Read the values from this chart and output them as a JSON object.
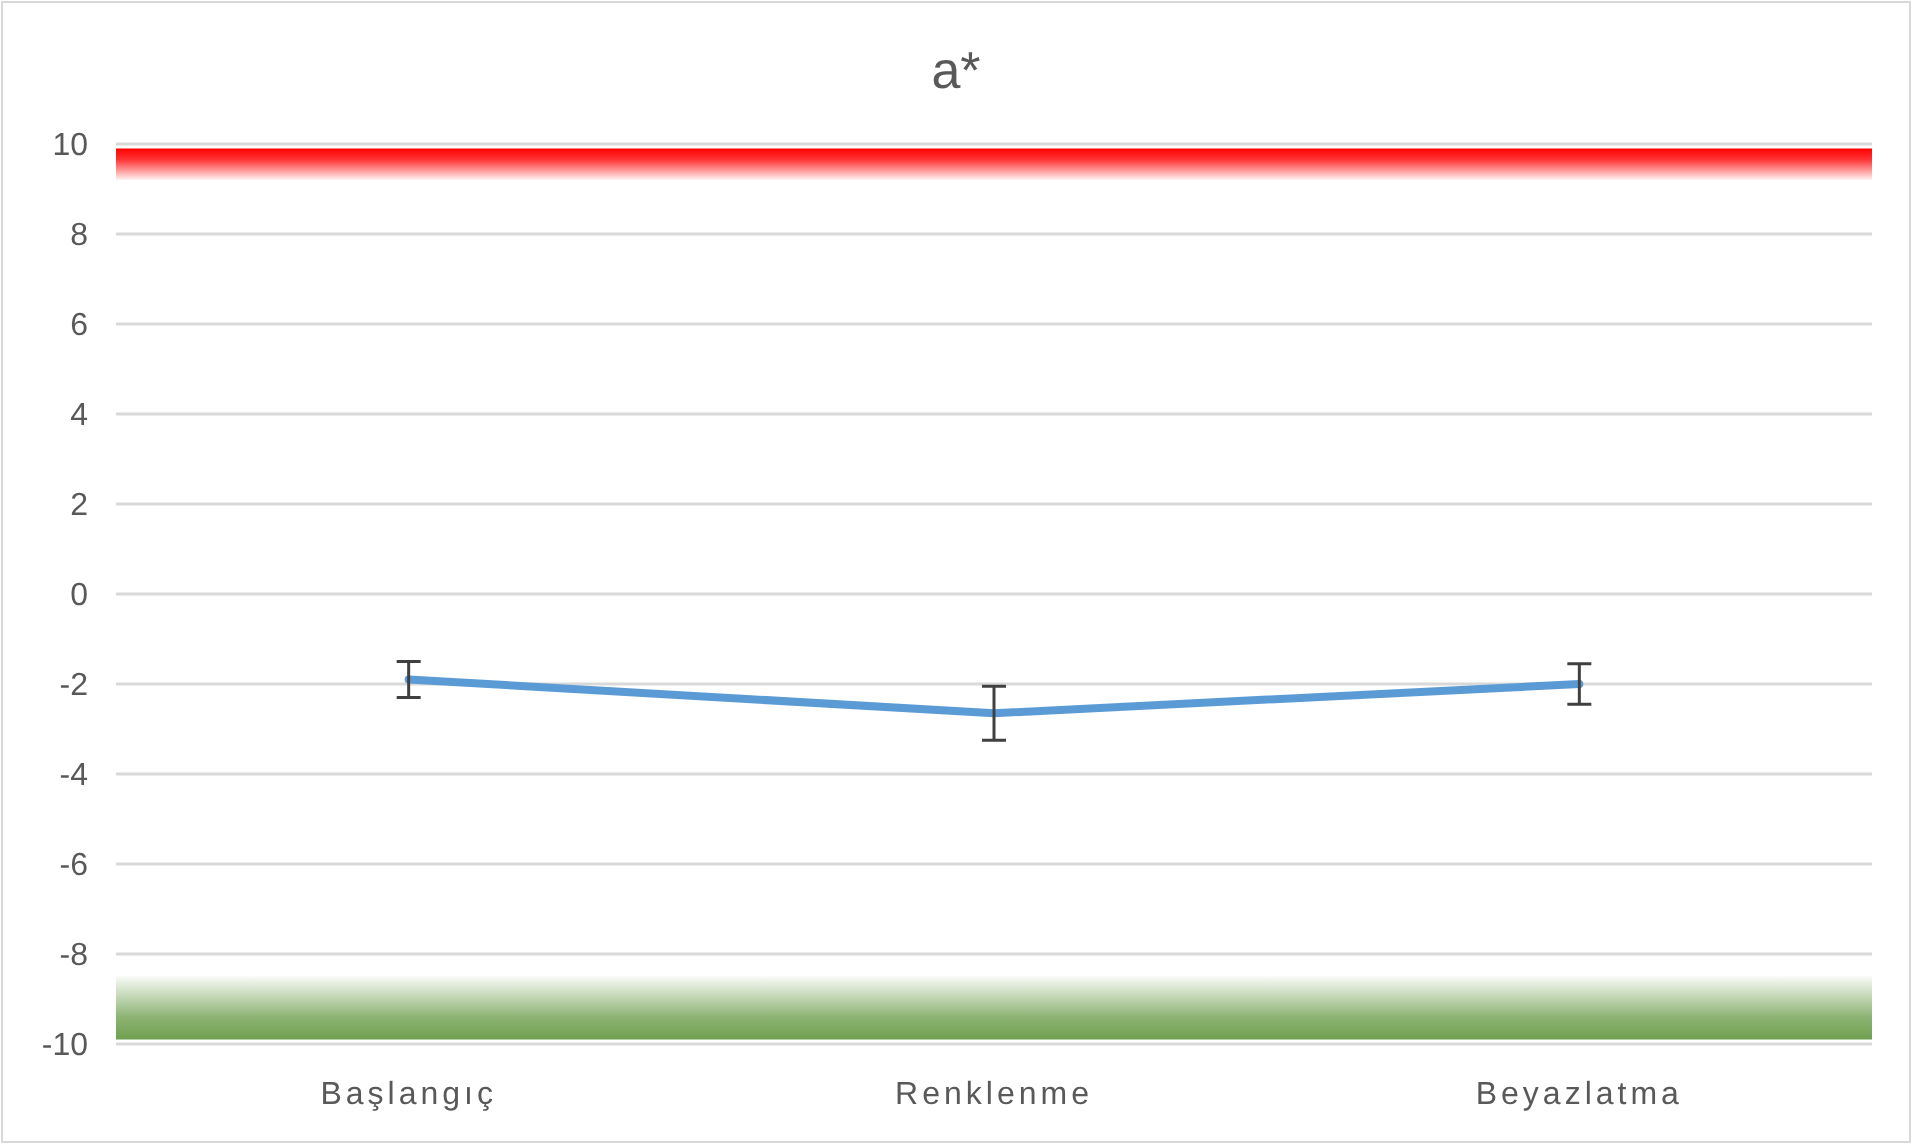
{
  "chart_data": {
    "type": "line",
    "title": "a*",
    "categories": [
      "Başlangıç",
      "Renklenme",
      "Beyazlatma"
    ],
    "series": [
      {
        "color": "#5b9bd5",
        "values": [
          -1.9,
          -2.65,
          -2.0
        ],
        "errors": [
          0.4,
          0.6,
          0.45
        ]
      }
    ],
    "ylim": [
      -10,
      10
    ],
    "yticks": [
      -10,
      -8,
      -6,
      -4,
      -2,
      0,
      2,
      4,
      6,
      8,
      10
    ],
    "grid": "y",
    "marker": "none",
    "line_style": "solid",
    "bands": [
      {
        "axis": "y",
        "from": 9.2,
        "to": 9.9,
        "color": "#ff0000"
      },
      {
        "axis": "y",
        "from": -9.9,
        "to": -8.5,
        "color": "#70a050"
      }
    ]
  }
}
